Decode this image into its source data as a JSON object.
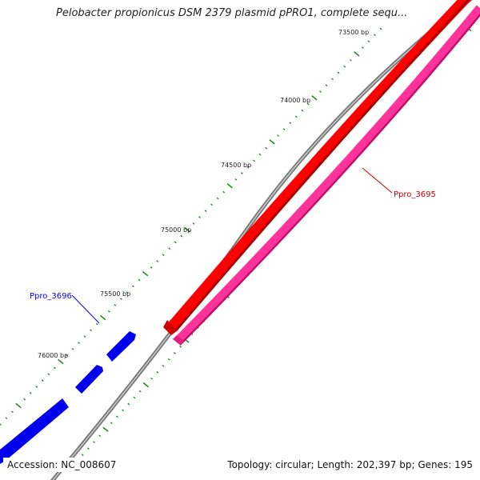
{
  "title": "Pelobacter propionicus DSM 2379 plasmid pPRO1, complete sequ...",
  "footer": {
    "accession": "Accession: NC_008607",
    "summary": "Topology: circular; Length: 202,397 bp; Genes: 195"
  },
  "ticks": [
    {
      "label": "73500 bp"
    },
    {
      "label": "74000 bp"
    },
    {
      "label": "74500 bp"
    },
    {
      "label": "75000 bp"
    },
    {
      "label": "75500 bp"
    },
    {
      "label": "76000 bp"
    }
  ],
  "genes": [
    {
      "label": "Ppro_3695",
      "color": "#cc0000"
    },
    {
      "label": "Ppro_3696",
      "color": "#0000ee"
    }
  ],
  "colors": {
    "backbone": "#888888",
    "forward_gene": "#ff0000",
    "reverse_gene": "#0000ee",
    "extra_track": "#ff3399",
    "tick": "#228b22"
  }
}
